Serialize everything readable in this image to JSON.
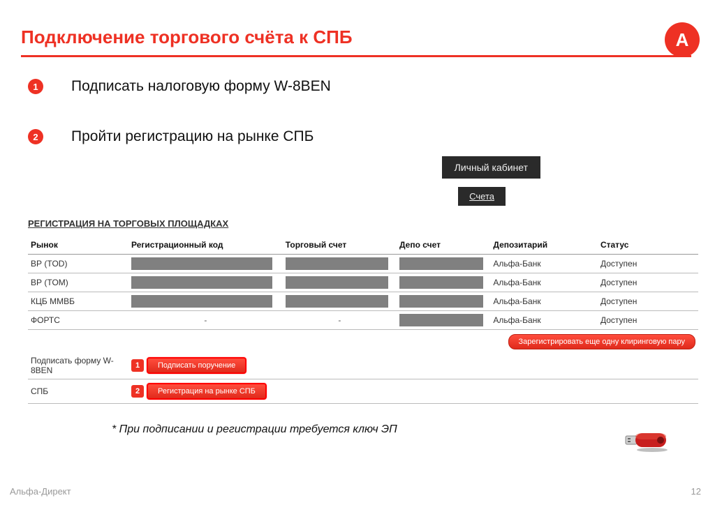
{
  "colors": {
    "brand": "#ee3124",
    "dark_nav": "#2a2a2a",
    "grey_block": "#808080",
    "border": "#bbbbbb"
  },
  "header": {
    "title": "Подключение торгового счёта к СПБ",
    "logo_letter": "А"
  },
  "steps": [
    {
      "num": "1",
      "text": "Подписать налоговую форму W-8BEN"
    },
    {
      "num": "2",
      "text": "Пройти регистрацию на рынке СПБ"
    }
  ],
  "nav": {
    "cabinet": "Личный кабинет",
    "accounts": "Счета"
  },
  "section_title": "РЕГИСТРАЦИЯ НА ТОРГОВЫХ ПЛОЩАДКАХ",
  "table": {
    "columns": [
      "Рынок",
      "Регистрационный код",
      "Торговый счет",
      "Депо счет",
      "Депозитарий",
      "Статус"
    ],
    "rows": [
      {
        "market": "ВР (TOD)",
        "reg": "grey",
        "trade": "grey",
        "depo": "grey",
        "depository": "Альфа-Банк",
        "status": "Доступен"
      },
      {
        "market": "ВР (TOM)",
        "reg": "grey",
        "trade": "grey",
        "depo": "grey",
        "depository": "Альфа-Банк",
        "status": "Доступен"
      },
      {
        "market": "КЦБ ММВБ",
        "reg": "grey",
        "trade": "grey",
        "depo": "grey",
        "depository": "Альфа-Банк",
        "status": "Доступен"
      },
      {
        "market": "ФОРТС",
        "reg": "-",
        "trade": "-",
        "depo": "grey",
        "depository": "Альфа-Банк",
        "status": "Доступен"
      }
    ],
    "register_pair_btn": "Зарегистрировать еще одну клиринговую пару"
  },
  "actions": [
    {
      "label": "Подписать форму W-8BEN",
      "badge": "1",
      "btn": "Подписать поручение"
    },
    {
      "label": "СПБ",
      "badge": "2",
      "btn": "Регистрация на рынке  СПБ"
    }
  ],
  "footnote": "* При подписании и регистрации требуется ключ ЭП",
  "footer": {
    "left": "Альфа-Директ",
    "page": "12"
  }
}
